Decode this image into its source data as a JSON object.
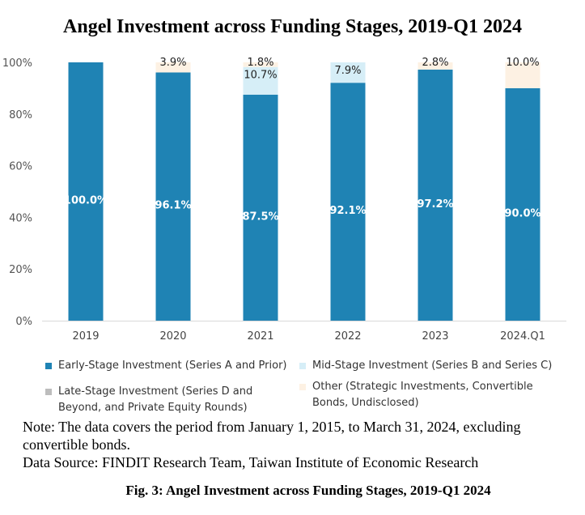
{
  "chart_data": {
    "type": "bar",
    "stacked": true,
    "title": "Angel Investment across Funding Stages, 2019-Q1 2024",
    "categories": [
      "2019",
      "2020",
      "2021",
      "2022",
      "2023",
      "2024.Q1"
    ],
    "ylim": [
      0,
      100
    ],
    "yticks": [
      0,
      20,
      40,
      60,
      80,
      100
    ],
    "ytick_labels": [
      "0%",
      "20%",
      "40%",
      "60%",
      "80%",
      "100%"
    ],
    "grid": false,
    "legend_position": "bottom",
    "series": [
      {
        "name": "Early-Stage Investment (Series A and Prior)",
        "color": "#1f83b4",
        "values": [
          100.0,
          96.1,
          87.5,
          92.1,
          97.2,
          90.0
        ],
        "labels": [
          "100.0%",
          "96.1%",
          "87.5%",
          "92.1%",
          "97.2%",
          "90.0%"
        ]
      },
      {
        "name": "Mid-Stage Investment (Series B and Series C)",
        "color": "#d6eef7",
        "values": [
          0,
          0,
          10.7,
          7.9,
          0,
          0
        ],
        "labels": [
          "",
          "",
          "10.7%",
          "7.9%",
          "",
          ""
        ]
      },
      {
        "name": "Late-Stage Investment (Series D and Beyond, and Private Equity Rounds)",
        "color": "#bdbdbd",
        "values": [
          0,
          0,
          0,
          0,
          0,
          0
        ],
        "labels": [
          "",
          "",
          "",
          "",
          "",
          ""
        ]
      },
      {
        "name": "Other (Strategic Investments, Convertible Bonds, Undisclosed)",
        "color": "#fdf1e3",
        "values": [
          0,
          3.9,
          1.8,
          0,
          2.8,
          10.0
        ],
        "labels": [
          "",
          "3.9%",
          "1.8%",
          "",
          "2.8%",
          "10.0%"
        ]
      }
    ]
  },
  "legend": {
    "early_line1": "Early-Stage Investment (Series A and Prior)",
    "mid_line1": "Mid-Stage Investment (Series B and Series C)",
    "late_line1": "Late-Stage Investment (Series D and",
    "late_line2": "Beyond, and Private Equity Rounds)",
    "other_line1": "Other (Strategic Investments, Convertible",
    "other_line2": "Bonds, Undisclosed)"
  },
  "note": {
    "line1": "Note: The data covers the period from January 1, 2015, to March 31, 2024, excluding",
    "line2": "convertible bonds.",
    "source": "Data Source: FINDIT Research Team, Taiwan Institute of Economic Research"
  },
  "caption": "Fig. 3: Angel Investment across Funding Stages, 2019-Q1 2024",
  "colors": {
    "early": "#1f83b4",
    "mid": "#d6eef7",
    "late": "#bdbdbd",
    "other": "#fdf1e3"
  }
}
